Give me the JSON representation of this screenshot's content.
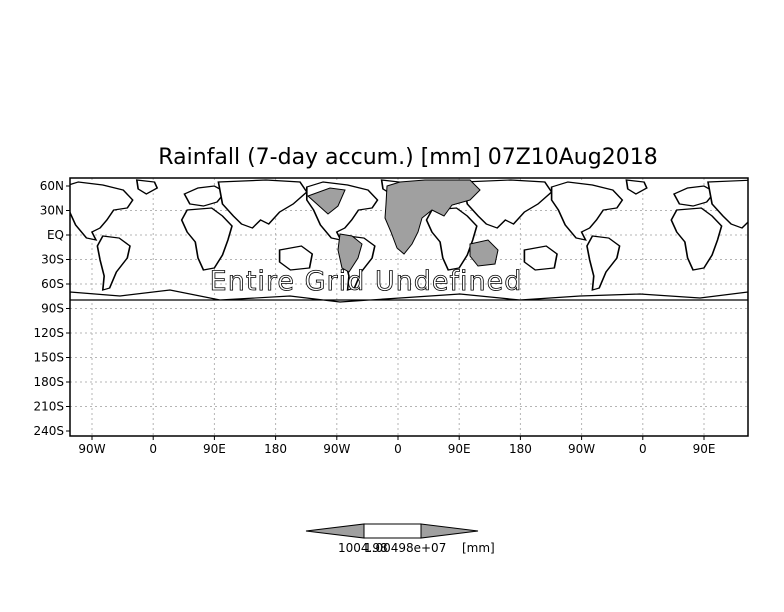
{
  "title": "Rainfall (7-day accum.) [mm] 07Z10Aug2018",
  "overlay_message": "Entire Grid Undefined",
  "y_axis_labels": [
    "60N",
    "30N",
    "EQ",
    "30S",
    "60S",
    "90S",
    "120S",
    "150S",
    "180S",
    "210S",
    "240S"
  ],
  "x_axis_labels": [
    "90W",
    "0",
    "90E",
    "180",
    "90W",
    "0",
    "90E",
    "180",
    "90W",
    "0",
    "90E"
  ],
  "colorbar": {
    "label_left": "1004.98",
    "label_right": "1.00498e+07",
    "units": "[mm]"
  },
  "colors": {
    "background": "#ffffff",
    "land_fill": "#a0a0a0",
    "colorbar_fill": "#a0a0a0",
    "frame": "#000000",
    "grid": "#b4b4b4"
  }
}
